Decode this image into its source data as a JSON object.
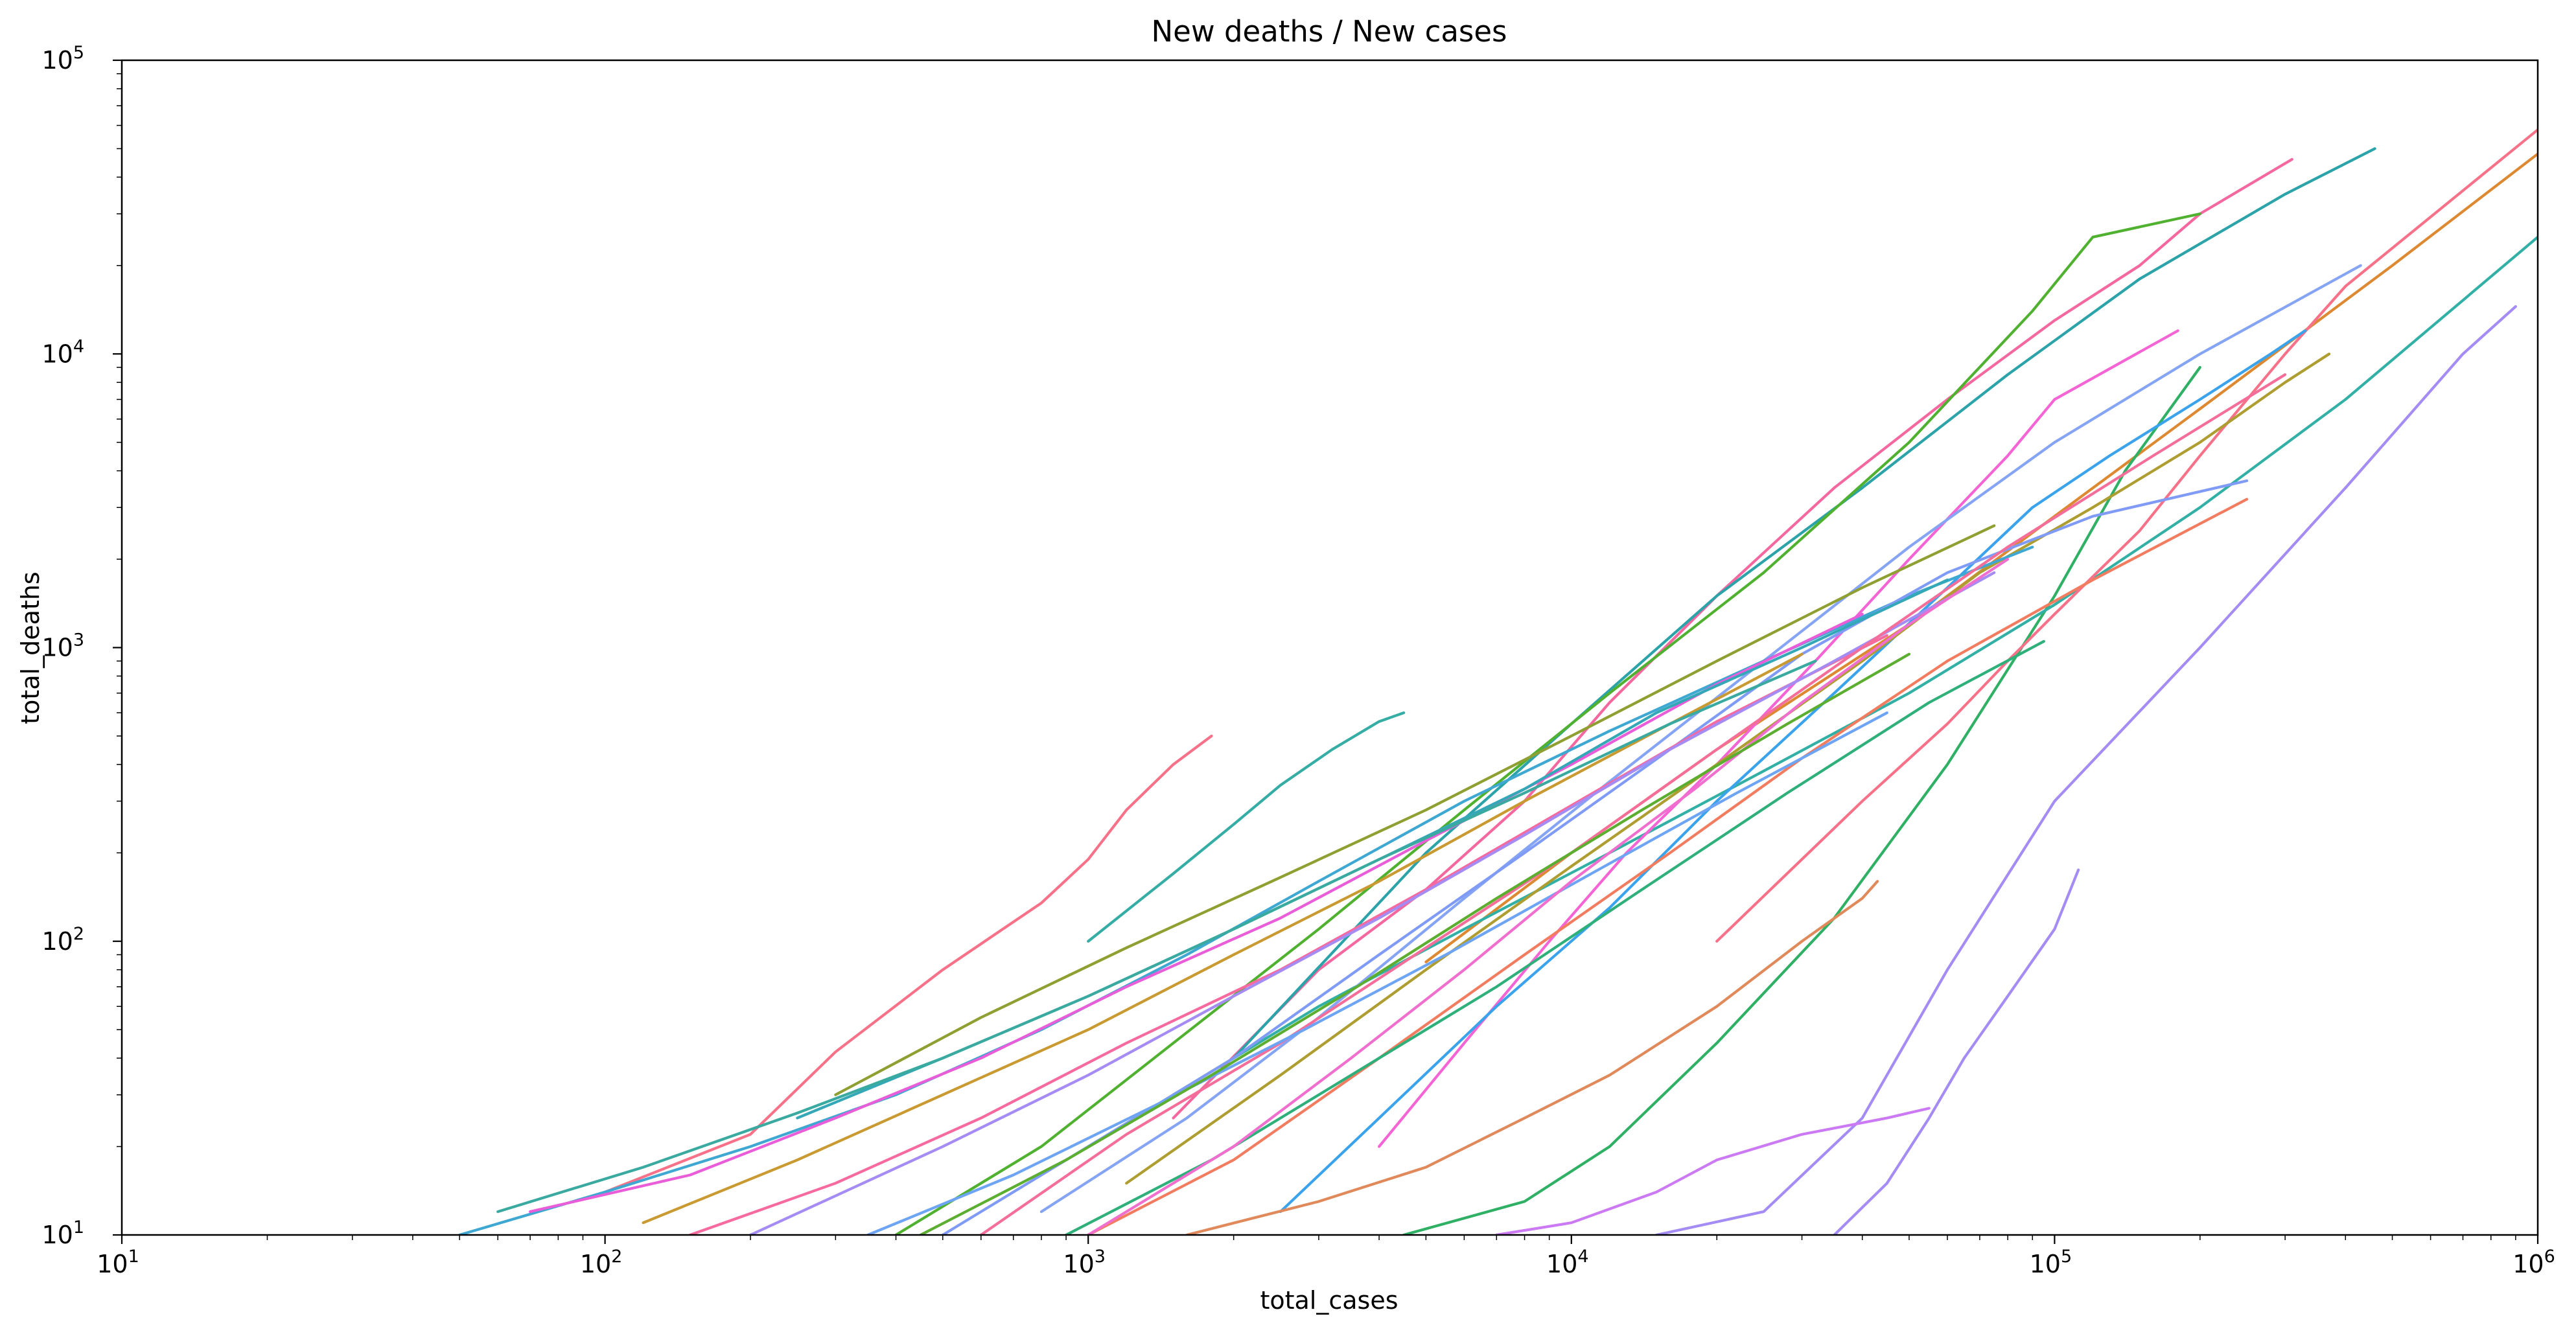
{
  "chart_data": {
    "type": "line",
    "title": "New deaths / New cases",
    "xlabel": "total_cases",
    "ylabel": "total_deaths",
    "xscale": "log",
    "yscale": "log",
    "xlim": [
      10,
      1000000
    ],
    "ylim": [
      10,
      100000
    ],
    "grid": false,
    "legend": "none",
    "x_ticks": [
      {
        "value": 10,
        "base": "10",
        "exp": "1"
      },
      {
        "value": 100,
        "base": "10",
        "exp": "2"
      },
      {
        "value": 1000,
        "base": "10",
        "exp": "3"
      },
      {
        "value": 10000,
        "base": "10",
        "exp": "4"
      },
      {
        "value": 100000,
        "base": "10",
        "exp": "5"
      },
      {
        "value": 1000000,
        "base": "10",
        "exp": "6"
      }
    ],
    "y_ticks": [
      {
        "value": 10,
        "base": "10",
        "exp": "1"
      },
      {
        "value": 100,
        "base": "10",
        "exp": "2"
      },
      {
        "value": 1000,
        "base": "10",
        "exp": "3"
      },
      {
        "value": 10000,
        "base": "10",
        "exp": "4"
      },
      {
        "value": 100000,
        "base": "10",
        "exp": "5"
      }
    ],
    "series": [
      {
        "color": "#f77189",
        "x": [
          100,
          200,
          300,
          500,
          800,
          1000,
          1200,
          1500,
          1800
        ],
        "y": [
          14,
          22,
          42,
          80,
          135,
          190,
          280,
          400,
          500
        ]
      },
      {
        "color": "#dc8932",
        "x": [
          5000,
          10000,
          20000,
          50000,
          100000,
          200000,
          500000,
          1000000
        ],
        "y": [
          85,
          200,
          450,
          1200,
          2800,
          6500,
          20000,
          48000
        ]
      },
      {
        "color": "#2fb065",
        "x": [
          4500,
          8000,
          12000,
          20000,
          35000,
          60000,
          100000,
          140000,
          200000
        ],
        "y": [
          10,
          13,
          20,
          45,
          120,
          400,
          1500,
          4000,
          9000
        ]
      },
      {
        "color": "#a48cf4",
        "x": [
          15000,
          25000,
          40000,
          60000,
          100000,
          200000,
          400000,
          700000,
          900000
        ],
        "y": [
          10,
          12,
          25,
          80,
          300,
          1000,
          3500,
          10000,
          14500
        ]
      },
      {
        "color": "#a48cf4",
        "x": [
          35000,
          45000,
          55000,
          65000,
          80000,
          100000,
          112000
        ],
        "y": [
          10,
          15,
          25,
          40,
          65,
          110,
          175
        ]
      },
      {
        "color": "#cc7af4",
        "x": [
          7000,
          10000,
          15000,
          20000,
          30000,
          45000,
          55000
        ],
        "y": [
          10,
          11,
          14,
          18,
          22,
          25,
          27
        ]
      },
      {
        "color": "#f4679f",
        "x": [
          1500,
          3000,
          5000,
          8000,
          12000,
          20000,
          35000,
          60000,
          100000,
          150000,
          200000,
          310000
        ],
        "y": [
          25,
          80,
          150,
          300,
          650,
          1500,
          3500,
          7000,
          13000,
          20000,
          30000,
          46000
        ]
      },
      {
        "color": "#2ba3a8",
        "x": [
          2000,
          5000,
          10000,
          20000,
          40000,
          80000,
          150000,
          300000,
          460000
        ],
        "y": [
          40,
          200,
          550,
          1500,
          3500,
          8500,
          18000,
          35000,
          50000
        ]
      },
      {
        "color": "#33b0a5",
        "x": [
          1500,
          3000,
          6000,
          12000,
          25000,
          50000,
          100000,
          200000,
          400000,
          1000000
        ],
        "y": [
          30,
          60,
          110,
          200,
          380,
          700,
          1400,
          3000,
          7000,
          25000
        ]
      },
      {
        "color": "#f77189",
        "x": [
          20000,
          40000,
          60000,
          80000,
          100000,
          150000,
          200000,
          300000,
          400000,
          1000000
        ],
        "y": [
          100,
          300,
          550,
          900,
          1300,
          2500,
          4500,
          10000,
          17000,
          58000
        ]
      },
      {
        "color": "#36ada4",
        "x": [
          1000,
          1500,
          2000,
          2500,
          3200,
          4000,
          4500
        ],
        "y": [
          100,
          170,
          250,
          340,
          450,
          560,
          600
        ]
      },
      {
        "color": "#f564d4",
        "x": [
          4000,
          6000,
          9000,
          13000,
          20000,
          32000,
          50000,
          80000,
          100000,
          180000
        ],
        "y": [
          20,
          45,
          100,
          200,
          400,
          900,
          2000,
          4500,
          7000,
          12000
        ]
      },
      {
        "color": "#3ba3ec",
        "x": [
          2500,
          4000,
          7000,
          12000,
          20000,
          35000,
          60000,
          90000,
          130000,
          200000,
          280000,
          330000
        ],
        "y": [
          12,
          25,
          60,
          130,
          300,
          700,
          1600,
          3000,
          4500,
          7000,
          10000,
          12000
        ]
      },
      {
        "color": "#ae9d31",
        "x": [
          1200,
          2500,
          5000,
          10000,
          20000,
          40000,
          70000,
          120000,
          200000,
          300000,
          370000
        ],
        "y": [
          15,
          35,
          80,
          180,
          400,
          900,
          1800,
          3000,
          5000,
          8000,
          10000
        ]
      },
      {
        "color": "#50b131",
        "x": [
          400,
          800,
          1500,
          3000,
          6000,
          12000,
          25000,
          50000,
          90000,
          120000,
          200000
        ],
        "y": [
          10,
          20,
          45,
          110,
          280,
          700,
          1800,
          5000,
          14000,
          25000,
          30000
        ]
      },
      {
        "color": "#f27c60",
        "x": [
          1000,
          2000,
          4000,
          8000,
          16000,
          30000,
          60000,
          120000,
          250000
        ],
        "y": [
          10,
          18,
          40,
          90,
          200,
          420,
          900,
          1700,
          3200
        ]
      },
      {
        "color": "#86a4f4",
        "x": [
          800,
          1600,
          3000,
          6000,
          12000,
          25000,
          50000,
          100000,
          200000,
          430000
        ],
        "y": [
          12,
          25,
          55,
          140,
          350,
          900,
          2200,
          5000,
          10000,
          20000
        ]
      },
      {
        "color": "#e0895a",
        "x": [
          1600,
          3000,
          5000,
          8000,
          12000,
          20000,
          30000,
          40000,
          43000
        ],
        "y": [
          10,
          13,
          17,
          25,
          35,
          60,
          100,
          140,
          160
        ]
      },
      {
        "color": "#3ea8d2",
        "x": [
          50,
          100,
          200,
          400,
          800,
          1600,
          3000,
          6000,
          12000,
          25000,
          50000,
          90000
        ],
        "y": [
          10,
          14,
          20,
          30,
          50,
          90,
          160,
          300,
          520,
          900,
          1500,
          2200
        ]
      },
      {
        "color": "#7f9bf5",
        "x": [
          500,
          1000,
          2000,
          4000,
          8000,
          16000,
          30000,
          60000,
          120000,
          250000
        ],
        "y": [
          10,
          20,
          40,
          90,
          200,
          450,
          950,
          1800,
          2800,
          3700
        ]
      },
      {
        "color": "#e95dd9",
        "x": [
          70,
          150,
          300,
          600,
          1200,
          2500,
          5000,
          10000,
          20000,
          40000
        ],
        "y": [
          12,
          16,
          25,
          40,
          70,
          120,
          220,
          400,
          750,
          1300
        ]
      },
      {
        "color": "#35a8b8",
        "x": [
          250,
          500,
          1000,
          2000,
          4000,
          8000,
          15000,
          30000,
          60000
        ],
        "y": [
          25,
          40,
          65,
          110,
          190,
          330,
          600,
          1000,
          1700
        ]
      },
      {
        "color": "#8f9f31",
        "x": [
          300,
          600,
          1200,
          2400,
          5000,
          10000,
          20000,
          40000,
          75000
        ],
        "y": [
          30,
          55,
          95,
          160,
          280,
          500,
          900,
          1600,
          2600
        ]
      },
      {
        "color": "#f66aa0",
        "x": [
          150,
          300,
          600,
          1200,
          2500,
          5000,
          10000,
          20000,
          45000
        ],
        "y": [
          10,
          15,
          25,
          45,
          80,
          150,
          290,
          560,
          1100
        ]
      },
      {
        "color": "#a48cf4",
        "x": [
          200,
          500,
          1000,
          2000,
          4000,
          8000,
          16000,
          35000,
          75000
        ],
        "y": [
          10,
          20,
          35,
          65,
          120,
          230,
          450,
          900,
          1800
        ]
      },
      {
        "color": "#2fb07a",
        "x": [
          900,
          1800,
          3500,
          7000,
          14000,
          28000,
          55000,
          95000
        ],
        "y": [
          10,
          18,
          35,
          70,
          150,
          320,
          650,
          1050
        ]
      },
      {
        "color": "#c99a31",
        "x": [
          120,
          250,
          500,
          1000,
          2000,
          4000,
          8000,
          16000,
          30000
        ],
        "y": [
          11,
          18,
          30,
          50,
          90,
          160,
          300,
          550,
          950
        ]
      },
      {
        "color": "#f56e9a",
        "x": [
          600,
          1200,
          2500,
          5000,
          10000,
          20000,
          40000,
          80000,
          160000,
          300000
        ],
        "y": [
          10,
          22,
          45,
          95,
          200,
          450,
          1000,
          2200,
          4500,
          8500
        ]
      },
      {
        "color": "#3aaaa0",
        "x": [
          60,
          120,
          250,
          500,
          1000,
          2000,
          4000,
          8000,
          16000,
          32000
        ],
        "y": [
          12,
          17,
          26,
          40,
          65,
          110,
          190,
          320,
          550,
          900
        ]
      },
      {
        "color": "#6ea4f4",
        "x": [
          350,
          700,
          1400,
          2800,
          5500,
          11000,
          22000,
          45000
        ],
        "y": [
          10,
          16,
          28,
          50,
          90,
          170,
          320,
          600
        ]
      },
      {
        "color": "#f06ecd",
        "x": [
          1000,
          2000,
          3500,
          6000,
          10000,
          18000,
          30000,
          50000,
          80000
        ],
        "y": [
          10,
          20,
          40,
          80,
          160,
          330,
          650,
          1200,
          2000
        ]
      },
      {
        "color": "#5cae31",
        "x": [
          450,
          900,
          1800,
          3600,
          7000,
          14000,
          28000,
          50000
        ],
        "y": [
          10,
          18,
          35,
          70,
          140,
          280,
          550,
          950
        ]
      }
    ]
  }
}
